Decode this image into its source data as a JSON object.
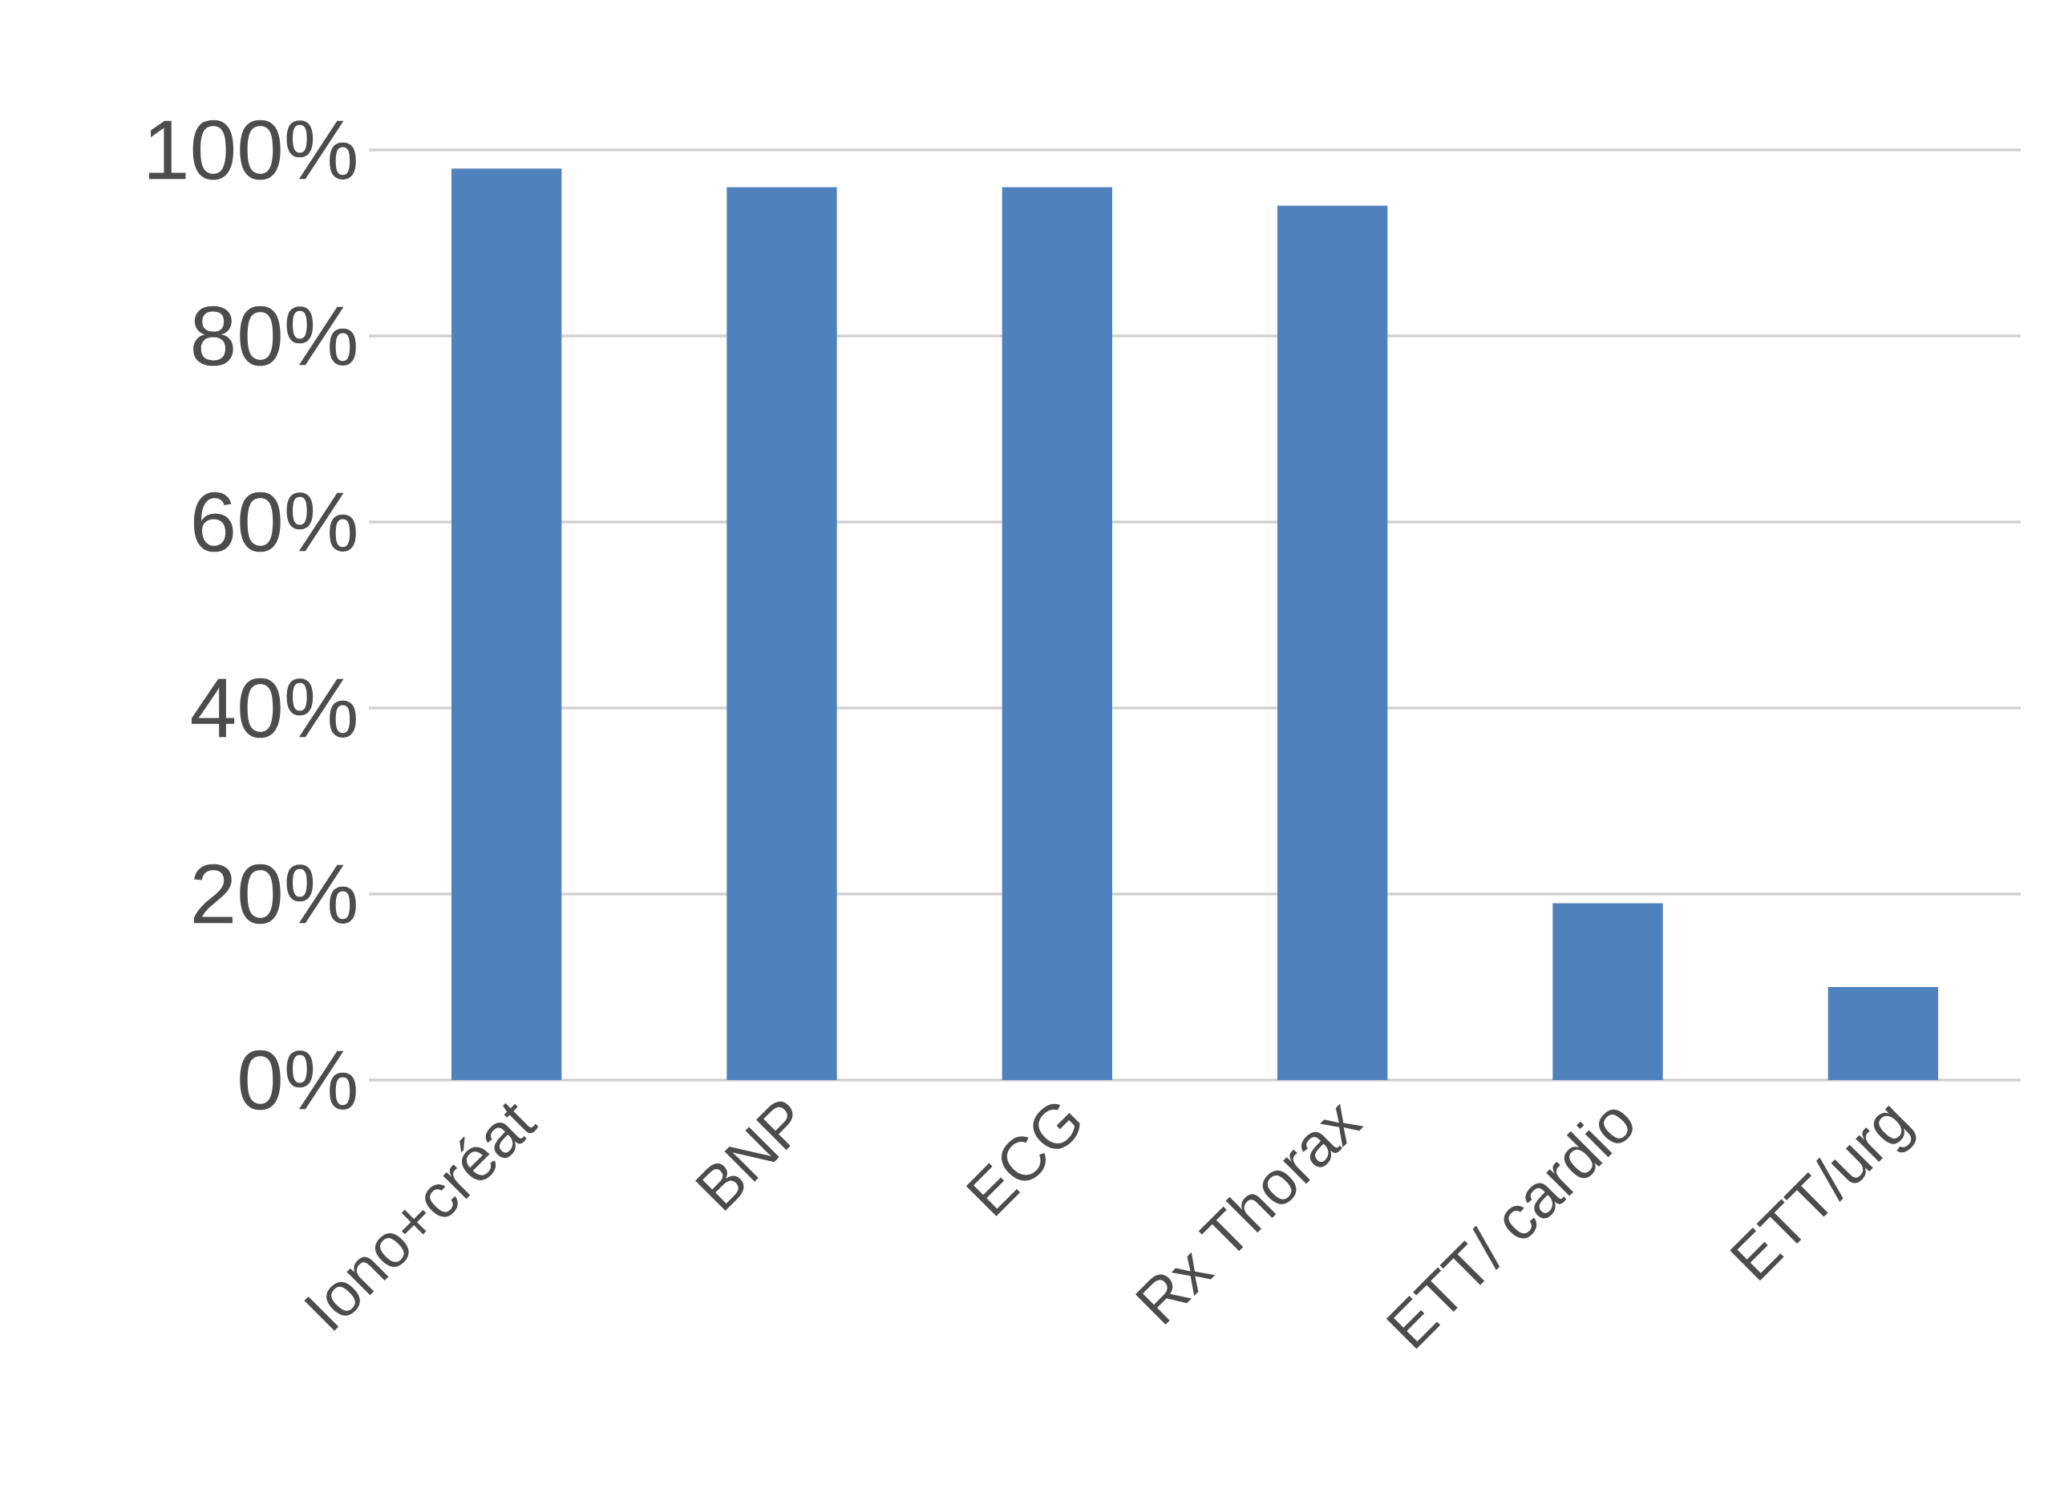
{
  "chart_data": {
    "type": "bar",
    "categories": [
      "Iono+créat",
      "BNP",
      "ECG",
      "Rx Thorax",
      "ETT/ cardio",
      "ETT/urg"
    ],
    "values": [
      98,
      96,
      96,
      94,
      19,
      10
    ],
    "color": "#4f81bd",
    "ylim": [
      0,
      100
    ],
    "yticks": [
      {
        "value": 0,
        "label": "0%"
      },
      {
        "value": 20,
        "label": "20%"
      },
      {
        "value": 40,
        "label": "40%"
      },
      {
        "value": 60,
        "label": "60%"
      },
      {
        "value": 80,
        "label": "80%"
      },
      {
        "value": 100,
        "label": "100%"
      }
    ],
    "grid": true
  }
}
